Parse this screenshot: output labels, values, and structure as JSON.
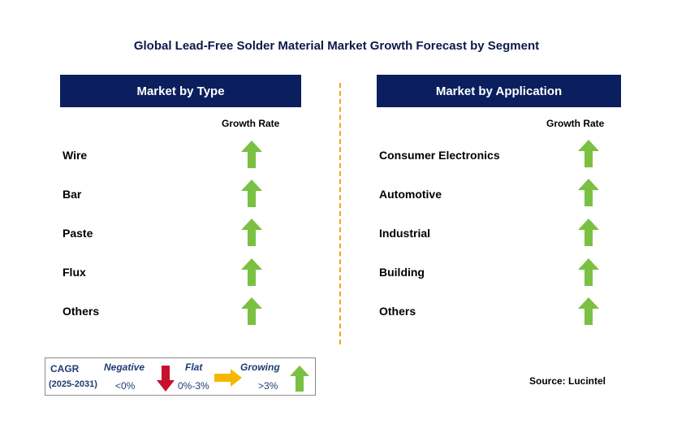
{
  "title": "Global Lead-Free Solder Material Market Growth Forecast by Segment",
  "left_panel": {
    "header": "Market by Type",
    "column_header": "Growth Rate",
    "rows": [
      {
        "label": "Wire",
        "trend": "growing"
      },
      {
        "label": "Bar",
        "trend": "growing"
      },
      {
        "label": "Paste",
        "trend": "growing"
      },
      {
        "label": "Flux",
        "trend": "growing"
      },
      {
        "label": "Others",
        "trend": "growing"
      }
    ]
  },
  "right_panel": {
    "header": "Market by Application",
    "column_header": "Growth Rate",
    "rows": [
      {
        "label": "Consumer Electronics",
        "trend": "growing"
      },
      {
        "label": "Automotive",
        "trend": "growing"
      },
      {
        "label": "Industrial",
        "trend": "growing"
      },
      {
        "label": "Building",
        "trend": "growing"
      },
      {
        "label": "Others",
        "trend": "growing"
      }
    ]
  },
  "legend": {
    "cagr_label": "CAGR",
    "period": "(2025-2031)",
    "negative_label": "Negative",
    "negative_range": "<0%",
    "flat_label": "Flat",
    "flat_range": "0%-3%",
    "growing_label": "Growing",
    "growing_range": ">3%"
  },
  "source": "Source: Lucintel",
  "colors": {
    "header_bg": "#0b1f5e",
    "growing": "#7ac143",
    "flat": "#f5b800",
    "negative": "#c8102e",
    "divider": "#f5a623"
  }
}
